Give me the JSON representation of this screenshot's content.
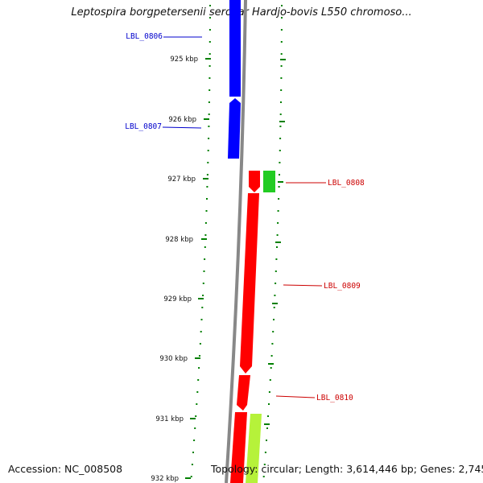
{
  "title": "Leptospira borgpetersenii serovar Hardjo-bovis L550 chromoso...",
  "footer": {
    "accession": "Accession: NC_008508",
    "topology": "Topology: circular; Length: 3,614,446 bp; Genes: 2,745"
  },
  "colors": {
    "forward_strand": "#0000ff",
    "reverse_strand": "#ff0000",
    "reverse_strand_alt": "#22cc22",
    "reverse_strand_lime": "#b6f23a",
    "backbone": "#888888",
    "tick": "#008000",
    "blue_label": "#0000cc",
    "red_label": "#cc0000"
  },
  "ticks": [
    {
      "label": "925 kbp"
    },
    {
      "label": "926 kbp"
    },
    {
      "label": "927 kbp"
    },
    {
      "label": "928 kbp"
    },
    {
      "label": "929 kbp"
    },
    {
      "label": "930 kbp"
    },
    {
      "label": "931 kbp"
    },
    {
      "label": "932 kbp"
    }
  ],
  "genes": [
    {
      "id": "LBL_0806"
    },
    {
      "id": "LBL_0807"
    },
    {
      "id": "LBL_0808"
    },
    {
      "id": "LBL_0809"
    },
    {
      "id": "LBL_0810"
    }
  ]
}
